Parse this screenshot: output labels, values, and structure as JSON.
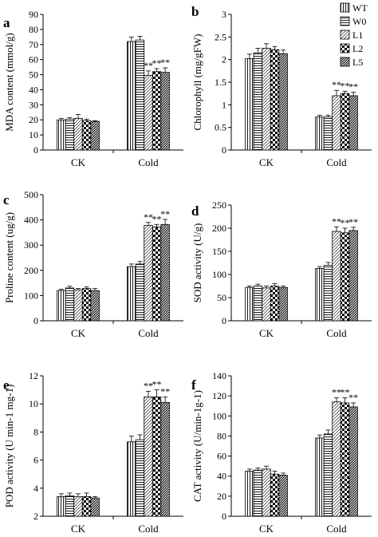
{
  "legend": {
    "entries": [
      "WT",
      "W0",
      "L1",
      "L2",
      "L5"
    ],
    "placement": "top-right of panel b"
  },
  "significance_mark": "**",
  "chart_data": [
    {
      "panel_label": "a",
      "type": "bar",
      "ylabel": "MDA content (mmol/g)",
      "ylim": [
        0,
        90
      ],
      "yticks": [
        "0",
        "10",
        "20",
        "30",
        "40",
        "50",
        "60",
        "70",
        "80",
        "90"
      ],
      "categories": [
        "CK",
        "Cold"
      ],
      "series": [
        {
          "name": "WT",
          "values": [
            20,
            72
          ],
          "errors": [
            1,
            3
          ]
        },
        {
          "name": "W0",
          "values": [
            20.5,
            73
          ],
          "errors": [
            1,
            2.5
          ]
        },
        {
          "name": "L1",
          "values": [
            21,
            49.5
          ],
          "errors": [
            2.5,
            3
          ]
        },
        {
          "name": "L2",
          "values": [
            19.5,
            52
          ],
          "errors": [
            1,
            2
          ]
        },
        {
          "name": "L5",
          "values": [
            19,
            51.5
          ],
          "errors": [
            0.5,
            3
          ]
        }
      ],
      "significance": [
        [
          false,
          false
        ],
        [
          false,
          false
        ],
        [
          false,
          true
        ],
        [
          false,
          true
        ],
        [
          false,
          true
        ]
      ]
    },
    {
      "panel_label": "b",
      "type": "bar",
      "ylabel": "Chlorophyll (mg/gFW)",
      "ylim": [
        0,
        3
      ],
      "yticks": [
        "0",
        "0.5",
        "1",
        "1.5",
        "2",
        "2.5",
        "3"
      ],
      "categories": [
        "CK",
        "Cold"
      ],
      "series": [
        {
          "name": "WT",
          "values": [
            2.02,
            0.73
          ],
          "errors": [
            0.1,
            0.04
          ]
        },
        {
          "name": "W0",
          "values": [
            2.15,
            0.73
          ],
          "errors": [
            0.1,
            0.04
          ]
        },
        {
          "name": "L1",
          "values": [
            2.25,
            1.2
          ],
          "errors": [
            0.1,
            0.12
          ]
        },
        {
          "name": "L2",
          "values": [
            2.22,
            1.25
          ],
          "errors": [
            0.07,
            0.05
          ]
        },
        {
          "name": "L5",
          "values": [
            2.13,
            1.2
          ],
          "errors": [
            0.08,
            0.08
          ]
        }
      ],
      "significance": [
        [
          false,
          false
        ],
        [
          false,
          false
        ],
        [
          false,
          true
        ],
        [
          false,
          true
        ],
        [
          false,
          true
        ]
      ]
    },
    {
      "panel_label": "c",
      "type": "bar",
      "ylabel": "Proline content (ug/g)",
      "ylim": [
        0,
        500
      ],
      "yticks": [
        "0",
        "100",
        "200",
        "300",
        "400",
        "500"
      ],
      "categories": [
        "CK",
        "Cold"
      ],
      "series": [
        {
          "name": "WT",
          "values": [
            120,
            215
          ],
          "errors": [
            5,
            10
          ]
        },
        {
          "name": "W0",
          "values": [
            130,
            225
          ],
          "errors": [
            7,
            10
          ]
        },
        {
          "name": "L1",
          "values": [
            123,
            378
          ],
          "errors": [
            5,
            12
          ]
        },
        {
          "name": "L2",
          "values": [
            128,
            372
          ],
          "errors": [
            6,
            10
          ]
        },
        {
          "name": "L5",
          "values": [
            120,
            382
          ],
          "errors": [
            8,
            20
          ]
        }
      ],
      "significance": [
        [
          false,
          false
        ],
        [
          false,
          false
        ],
        [
          false,
          true
        ],
        [
          false,
          true
        ],
        [
          false,
          true
        ]
      ]
    },
    {
      "panel_label": "d",
      "type": "bar",
      "ylabel": "SOD activity (U/g)",
      "ylim": [
        0,
        250
      ],
      "yticks": [
        "0",
        "50",
        "100",
        "150",
        "200",
        "250"
      ],
      "categories": [
        "CK",
        "Cold"
      ],
      "series": [
        {
          "name": "WT",
          "values": [
            72,
            113
          ],
          "errors": [
            3,
            4
          ]
        },
        {
          "name": "W0",
          "values": [
            75,
            120
          ],
          "errors": [
            4,
            6
          ]
        },
        {
          "name": "L1",
          "values": [
            71,
            193
          ],
          "errors": [
            4,
            10
          ]
        },
        {
          "name": "L2",
          "values": [
            75,
            190
          ],
          "errors": [
            5,
            10
          ]
        },
        {
          "name": "L5",
          "values": [
            72,
            195
          ],
          "errors": [
            3,
            7
          ]
        }
      ],
      "significance": [
        [
          false,
          false
        ],
        [
          false,
          false
        ],
        [
          false,
          true
        ],
        [
          false,
          true
        ],
        [
          false,
          true
        ]
      ]
    },
    {
      "panel_label": "e",
      "type": "bar",
      "ylabel": "POD activity  (U min-1 mg-1)",
      "ylim": [
        2,
        12
      ],
      "yticks": [
        "2",
        "4",
        "6",
        "8",
        "10",
        "12"
      ],
      "categories": [
        "CK",
        "Cold"
      ],
      "series": [
        {
          "name": "WT",
          "values": [
            3.4,
            7.3
          ],
          "errors": [
            0.2,
            0.4
          ]
        },
        {
          "name": "W0",
          "values": [
            3.45,
            7.45
          ],
          "errors": [
            0.2,
            0.35
          ]
        },
        {
          "name": "L1",
          "values": [
            3.4,
            10.5
          ],
          "errors": [
            0.2,
            0.4
          ]
        },
        {
          "name": "L2",
          "values": [
            3.4,
            10.5
          ],
          "errors": [
            0.25,
            0.5
          ]
        },
        {
          "name": "L5",
          "values": [
            3.3,
            10.1
          ],
          "errors": [
            0.1,
            0.4
          ]
        }
      ],
      "significance": [
        [
          false,
          false
        ],
        [
          false,
          false
        ],
        [
          false,
          true
        ],
        [
          false,
          true
        ],
        [
          false,
          true
        ]
      ]
    },
    {
      "panel_label": "f",
      "type": "bar",
      "ylabel": "CAT activity (U/min-1g-1)",
      "ylim": [
        0,
        140
      ],
      "yticks": [
        "0",
        "20",
        "40",
        "60",
        "80",
        "100",
        "120",
        "140"
      ],
      "categories": [
        "CK",
        "Cold"
      ],
      "series": [
        {
          "name": "WT",
          "values": [
            45,
            78
          ],
          "errors": [
            2,
            3
          ]
        },
        {
          "name": "W0",
          "values": [
            46,
            82
          ],
          "errors": [
            2,
            4
          ]
        },
        {
          "name": "L1",
          "values": [
            47,
            114
          ],
          "errors": [
            3,
            4
          ]
        },
        {
          "name": "L2",
          "values": [
            42,
            113
          ],
          "errors": [
            3,
            5
          ]
        },
        {
          "name": "L5",
          "values": [
            41,
            109
          ],
          "errors": [
            2,
            4
          ]
        }
      ],
      "significance": [
        [
          false,
          false
        ],
        [
          false,
          false
        ],
        [
          false,
          true
        ],
        [
          false,
          true
        ],
        [
          false,
          true
        ]
      ]
    }
  ]
}
